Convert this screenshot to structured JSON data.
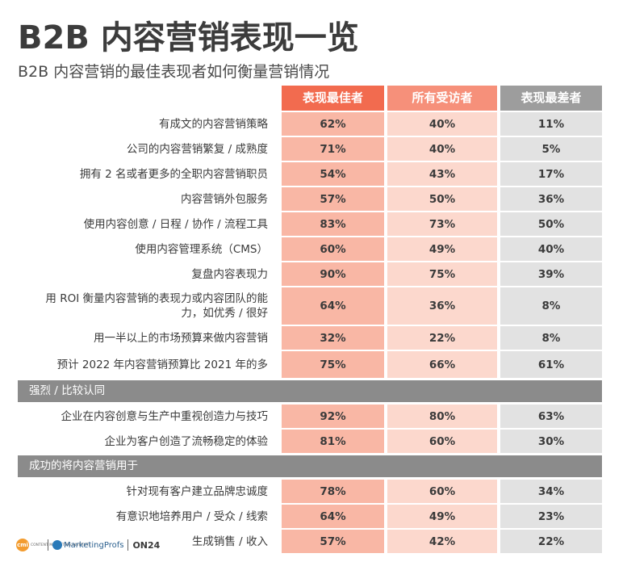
{
  "page": {
    "title": "B2B 内容营销表现一览",
    "subtitle": "B2B 内容营销的最佳表现者如何衡量营销情况"
  },
  "footer": {
    "logo_cmi": "cmi",
    "logo_cmi_text": "CONTENT MARKETING INSTITUTE",
    "logo_mp": "MarketingProfs",
    "logo_on24": "ON24"
  },
  "colors": {
    "best_header": "#f26b4f",
    "all_header": "#f6907a",
    "worst_header": "#9d9d9d",
    "best_cell": "#f9b7a5",
    "all_cell": "#fcd8cd",
    "worst_cell": "#e2e2e2",
    "section_band": "#8b8b8b"
  },
  "chart_data": {
    "type": "table",
    "title": "B2B 内容营销表现一览",
    "subtitle": "B2B 内容营销的最佳表现者如何衡量营销情况",
    "columns": [
      "表现最佳者",
      "所有受访者",
      "表现最差者"
    ],
    "groups": [
      {
        "heading": "",
        "rows": [
          {
            "label": "有成文的内容营销策略",
            "values": [
              "62%",
              "40%",
              "11%"
            ]
          },
          {
            "label": "公司的内容营销繁复 / 成熟度",
            "values": [
              "71%",
              "40%",
              "5%"
            ]
          },
          {
            "label": "拥有 2 名或者更多的全职内容营销职员",
            "values": [
              "54%",
              "43%",
              "17%"
            ]
          },
          {
            "label": "内容营销外包服务",
            "values": [
              "57%",
              "50%",
              "36%"
            ]
          },
          {
            "label": "使用内容创意 / 日程 / 协作 / 流程工具",
            "values": [
              "83%",
              "73%",
              "50%"
            ]
          },
          {
            "label": "使用内容管理系统（CMS）",
            "values": [
              "60%",
              "49%",
              "40%"
            ]
          },
          {
            "label": "复盘内容表现力",
            "values": [
              "90%",
              "75%",
              "39%"
            ]
          },
          {
            "label": "用 ROI 衡量内容营销的表现力或内容团队的能力，如优秀 / 很好",
            "values": [
              "64%",
              "36%",
              "8%"
            ]
          },
          {
            "label": "用一半以上的市场预算来做内容营销",
            "values": [
              "32%",
              "22%",
              "8%"
            ]
          },
          {
            "label": "预计 2022 年内容营销预算比 2021 年的多",
            "values": [
              "75%",
              "66%",
              "61%"
            ]
          }
        ]
      },
      {
        "heading": "强烈 / 比较认同",
        "rows": [
          {
            "label": "企业在内容创意与生产中重视创造力与技巧",
            "values": [
              "92%",
              "80%",
              "63%"
            ]
          },
          {
            "label": "企业为客户创造了流畅稳定的体验",
            "values": [
              "81%",
              "60%",
              "30%"
            ]
          }
        ]
      },
      {
        "heading": "成功的将内容营销用于",
        "rows": [
          {
            "label": "针对现有客户建立品牌忠诚度",
            "values": [
              "78%",
              "60%",
              "34%"
            ]
          },
          {
            "label": "有意识地培养用户 / 受众 / 线索",
            "values": [
              "64%",
              "49%",
              "23%"
            ]
          },
          {
            "label": "生成销售 / 收入",
            "values": [
              "57%",
              "42%",
              "22%"
            ]
          }
        ]
      }
    ]
  }
}
